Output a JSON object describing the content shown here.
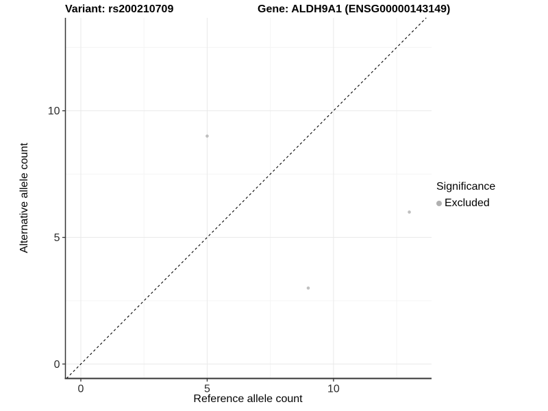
{
  "header": {
    "variant_title": "Variant: rs200210709",
    "gene_title": "Gene: ALDH9A1 (ENSG00000143149)"
  },
  "chart_data": {
    "type": "scatter",
    "xlabel": "Reference allele count",
    "ylabel": "Alternative allele count",
    "x_ticks": [
      0,
      5,
      10
    ],
    "y_ticks": [
      0,
      5,
      10
    ],
    "x_minor_gridlines": [
      2.5,
      7.5,
      12.5
    ],
    "y_minor_gridlines": [
      2.5,
      7.5,
      12.5
    ],
    "xlim": [
      -0.61,
      13.88
    ],
    "ylim": [
      -0.57,
      13.67
    ],
    "grid": true,
    "reference_line": {
      "slope": 1,
      "intercept": 0,
      "style": "dashed",
      "color": "#000000"
    },
    "series": [
      {
        "name": "Excluded",
        "color": "#bfbfbf",
        "points": [
          {
            "x": 5,
            "y": 9
          },
          {
            "x": 9,
            "y": 3
          },
          {
            "x": 13,
            "y": 6
          }
        ]
      }
    ],
    "legend": {
      "title": "Significance",
      "position": "right",
      "items": [
        {
          "label": "Excluded",
          "color": "#b0b0b0"
        }
      ]
    },
    "style": {
      "point_radius": 2.3,
      "major_grid_color": "#e9e9e9",
      "minor_grid_color": "#f4f4f4",
      "axis_line_color": "#333333",
      "tick_color": "#333333",
      "tick_label_color": "#2b2b2b",
      "tick_label_size": 16
    }
  }
}
